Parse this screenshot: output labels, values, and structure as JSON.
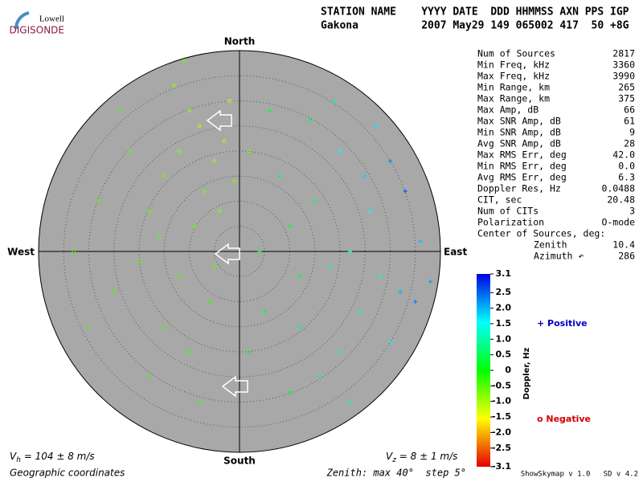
{
  "logo": {
    "top": "Lowell",
    "bottom": "DIGISONDE"
  },
  "header": {
    "line1": "STATION NAME    YYYY DATE  DDD HHMMSS AXN PPS IGP",
    "line2": "Gakona          2007 May29 149 065002 417  50 +8G"
  },
  "compass": {
    "north": "North",
    "south": "South",
    "east": "East",
    "west": "West"
  },
  "stats": [
    [
      "Num of Sources",
      "2817"
    ],
    [
      "Min Freq, kHz",
      "3360"
    ],
    [
      "Max Freq, kHz",
      "3990"
    ],
    [
      "Min Range, km",
      "265"
    ],
    [
      "Max Range, km",
      "375"
    ],
    [
      "Max Amp, dB",
      "66"
    ],
    [
      "Max SNR Amp, dB",
      "61"
    ],
    [
      "Min SNR Amp, dB",
      "9"
    ],
    [
      "Avg SNR Amp, dB",
      "28"
    ],
    [
      "Max RMS Err, deg",
      "42.0"
    ],
    [
      "Min RMS Err, deg",
      "0.0"
    ],
    [
      "Avg RMS Err, deg",
      "6.3"
    ],
    [
      "Doppler Res, Hz",
      "0.0488"
    ],
    [
      "CIT, sec",
      "20.48"
    ],
    [
      "Num of CITs",
      "3"
    ],
    [
      "Polarization",
      "O-mode"
    ]
  ],
  "center": {
    "title": "Center of Sources, deg:",
    "zenith_label": "Zenith",
    "zenith": "10.4",
    "azimuth_label": "Azimuth ↶",
    "azimuth": "286"
  },
  "colorbar": {
    "title": "Doppler, Hz",
    "lim": [
      -3.1,
      3.1
    ],
    "ticks": [
      3.1,
      2.5,
      {
        "value": 2,
        "label": "2.0"
      },
      1.5,
      {
        "value": 1,
        "label": "1.0"
      },
      0.5,
      0,
      -0.5,
      {
        "value": -1,
        "label": "-1.0"
      },
      -1.5,
      {
        "value": -2,
        "label": "-2.0"
      },
      -2.5,
      -3.1
    ]
  },
  "legend": {
    "positive": "+ Positive",
    "negative": "o Negative",
    "positive_color": "#0000c8",
    "negative_color": "#d00000"
  },
  "footer": {
    "vh_symbol": "V",
    "vh_sub": "h",
    "vh_text": " = 104 ± 8 m/s",
    "vz_symbol": "V",
    "vz_sub": "z",
    "vz_text": " = 8 ± 1 m/s",
    "coords": "Geographic coordinates",
    "zenith": "Zenith: max 40°  step 5°",
    "version": "ShowSkymap v 1.0   SD v 4.2"
  },
  "skymap": {
    "zenith_max": 40,
    "ring_step": 5,
    "negative": {
      "x": [
        -10,
        -8,
        -12,
        -5,
        -15,
        -3,
        -7,
        -18,
        -9,
        -20,
        -12,
        -6,
        -25,
        -15,
        -28,
        -2,
        -13,
        -4,
        -22,
        -30,
        -10,
        -18,
        -5,
        -1,
        -24,
        -8,
        -33,
        2,
        -16,
        -11
      ],
      "y": [
        28,
        25,
        20,
        18,
        15,
        22,
        12,
        8,
        5,
        -2,
        -5,
        -10,
        -8,
        -15,
        10,
        30,
        33,
        8,
        20,
        -15,
        -20,
        -25,
        -3,
        14,
        28,
        -30,
        0,
        20,
        3,
        38
      ],
      "doppler": [
        -0.9,
        -1.1,
        -0.8,
        -0.9,
        -0.6,
        -1.0,
        -0.7,
        -0.5,
        -0.6,
        -0.4,
        -0.4,
        -0.3,
        -0.4,
        -0.4,
        -0.5,
        -1.2,
        -0.9,
        -0.8,
        -0.6,
        -0.3,
        -0.3,
        -0.3,
        -0.5,
        -0.8,
        -0.5,
        -0.3,
        -0.4,
        -0.7,
        -0.5,
        -0.6
      ]
    },
    "positive": {
      "x": [
        20,
        25,
        30,
        28,
        32,
        35,
        22,
        18,
        26,
        15,
        10,
        12,
        20,
        5,
        8,
        33,
        38,
        24,
        16,
        4,
        27,
        14,
        36,
        30,
        10,
        2,
        19,
        6,
        22,
        12
      ],
      "y": [
        20,
        15,
        18,
        -5,
        -8,
        -10,
        0,
        -3,
        8,
        10,
        5,
        -15,
        -20,
        -12,
        15,
        12,
        -6,
        -12,
        -25,
        0,
        25,
        26,
        2,
        -18,
        -28,
        -20,
        30,
        28,
        -30,
        -5
      ],
      "doppler": [
        1.5,
        1.8,
        2.2,
        1.3,
        2.0,
        2.3,
        1.1,
        1.0,
        1.4,
        0.6,
        0.4,
        0.7,
        0.9,
        0.3,
        0.5,
        2.5,
        2.1,
        1.2,
        0.8,
        0.2,
        1.7,
        0.6,
        1.9,
        1.6,
        0.5,
        0.2,
        1.0,
        0.3,
        0.9,
        0.5
      ]
    }
  }
}
